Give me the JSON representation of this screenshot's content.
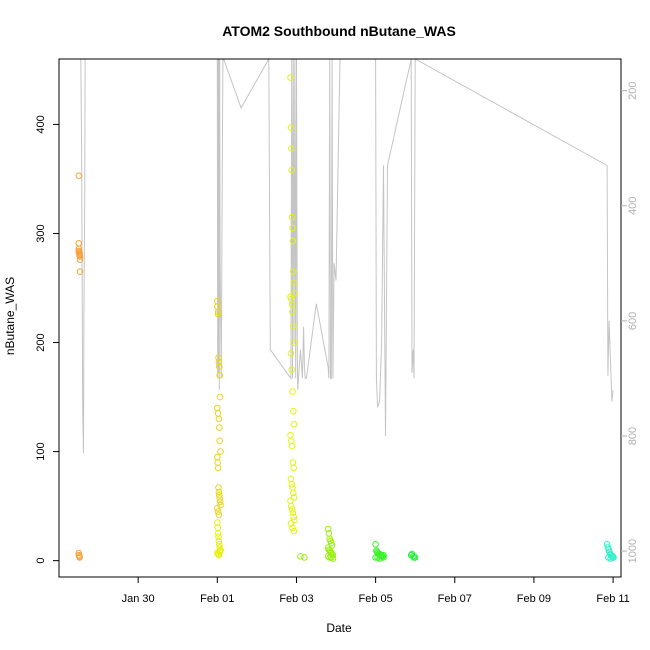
{
  "chart_data": {
    "type": "scatter",
    "title": "ATOM2 Southbound nButane_WAS",
    "xlabel": "Date",
    "ylabel": "nButane_WAS",
    "x_ticks": [
      "Jan 30",
      "Feb 01",
      "Feb 03",
      "Feb 05",
      "Feb 07",
      "Feb 09",
      "Feb 11"
    ],
    "x_tick_values": [
      30,
      32,
      34,
      36,
      38,
      40,
      42
    ],
    "xlim": [
      28.0,
      42.2
    ],
    "ylim": [
      -15,
      460
    ],
    "y_ticks": [
      0,
      100,
      200,
      300,
      400
    ],
    "y2_ticks": [
      200,
      400,
      600,
      800,
      1000
    ],
    "y2lim": [
      1045,
      145
    ],
    "colors": {
      "orange": "#f7a13b",
      "yellow_orange": "#e8d422",
      "yellow": "#e4f20f",
      "lime": "#9af016",
      "green": "#3cf22a",
      "green2": "#24f03f",
      "cyan": "#2ff2c9",
      "gray_line": "#c4c4c4"
    },
    "series": [
      {
        "color": "orange",
        "x": [
          28.5,
          28.5,
          28.5,
          28.5,
          28.5,
          28.52,
          28.52,
          28.52,
          28.53,
          28.53,
          28.53,
          28.5,
          28.5,
          28.52,
          28.52
        ],
        "values": [
          353,
          291,
          286,
          284,
          283,
          282,
          281,
          280,
          279,
          276,
          265,
          7,
          5,
          4,
          3
        ]
      },
      {
        "color": "yellow_orange",
        "x": [
          32.0,
          32.0,
          32.02,
          32.02,
          32.03,
          32.04,
          32.05,
          32.06,
          32.07,
          32.0,
          32.02,
          32.04,
          32.05,
          32.06,
          32.08,
          32.0,
          32.01,
          32.02,
          32.03,
          32.04,
          32.05,
          32.06,
          32.07,
          32.08,
          32.0,
          32.02,
          32.04
        ],
        "values": [
          238,
          233,
          228,
          226,
          186,
          182,
          178,
          170,
          150,
          140,
          135,
          130,
          122,
          110,
          100,
          95,
          90,
          85,
          67,
          63,
          60,
          57,
          54,
          51,
          48,
          45,
          42
        ]
      },
      {
        "color": "yellow",
        "x": [
          32.0,
          32.01,
          32.02,
          32.03,
          32.04,
          32.05,
          32.06,
          32.07,
          32.0,
          32.02,
          32.04,
          32.06,
          32.08,
          33.85,
          33.86,
          33.87,
          33.88,
          33.89,
          33.9,
          33.91,
          33.92,
          33.93,
          33.94,
          33.85,
          33.87,
          33.89,
          33.9,
          33.92,
          33.94,
          33.86,
          33.88,
          33.9,
          33.92,
          33.94,
          33.85,
          33.87,
          33.89,
          33.91,
          33.93,
          33.86,
          33.88,
          33.9,
          33.92,
          33.94,
          33.85,
          33.87,
          33.89,
          33.91,
          33.93,
          33.95,
          33.86,
          33.9,
          33.94
        ],
        "values": [
          35,
          30,
          25,
          22,
          18,
          15,
          12,
          9,
          7,
          6,
          5,
          8,
          10,
          443,
          397,
          378,
          358,
          315,
          305,
          293,
          265,
          255,
          245,
          242,
          240,
          235,
          228,
          215,
          200,
          190,
          175,
          155,
          137,
          125,
          115,
          110,
          105,
          90,
          85,
          75,
          70,
          67,
          62,
          58,
          55,
          50,
          47,
          44,
          40,
          37,
          34,
          30,
          27
        ]
      },
      {
        "color": "lime",
        "x": [
          34.1,
          34.2,
          34.8,
          34.82,
          34.84,
          34.86,
          34.88,
          34.9,
          34.8,
          34.82,
          34.84,
          34.86,
          34.88,
          34.9,
          34.92,
          34.8,
          34.84,
          34.88,
          34.92
        ],
        "values": [
          4,
          3,
          29,
          25,
          20,
          18,
          16,
          14,
          12,
          10,
          9,
          8,
          7,
          6,
          5,
          4,
          3,
          3,
          2
        ]
      },
      {
        "color": "green",
        "x": [
          36.0,
          36.02,
          36.04,
          36.06,
          36.08,
          36.1,
          36.12,
          36.14,
          36.16,
          36.18,
          36.2,
          36.0,
          36.05,
          36.1,
          36.15,
          36.2
        ],
        "values": [
          15,
          9,
          8,
          7,
          6,
          6,
          5,
          5,
          4,
          4,
          3,
          3,
          3,
          2,
          4,
          5
        ]
      },
      {
        "color": "green2",
        "x": [
          36.9,
          36.95,
          37.0,
          36.92,
          36.97
        ],
        "values": [
          5,
          4,
          3,
          6,
          3
        ]
      },
      {
        "color": "cyan",
        "x": [
          41.85,
          41.87,
          41.89,
          41.91,
          41.93,
          41.95,
          41.97,
          41.99,
          42.01,
          41.88,
          41.94,
          42.0
        ],
        "values": [
          15,
          12,
          10,
          8,
          6,
          5,
          4,
          4,
          3,
          3,
          2,
          3
        ]
      }
    ],
    "secondary_line": {
      "color": "gray_line",
      "x": [
        28.55,
        28.57,
        28.6,
        28.62,
        28.63,
        28.65,
        28.66,
        30.5,
        31.5,
        32.0,
        32.01,
        32.02,
        32.03,
        32.04,
        32.05,
        32.06,
        32.07,
        32.1,
        32.12,
        32.14,
        32.16,
        32.6,
        33.3,
        33.34,
        33.86,
        33.88,
        33.9,
        33.92,
        33.94,
        33.96,
        33.98,
        34.0,
        34.02,
        34.03,
        34.1,
        34.15,
        34.18,
        34.2,
        34.22,
        34.25,
        34.5,
        34.8,
        34.82,
        34.84,
        34.86,
        34.88,
        34.9,
        34.92,
        34.95,
        35.0,
        35.1,
        35.8,
        35.85,
        35.9,
        36.0,
        36.02,
        36.05,
        36.1,
        36.12,
        36.15,
        36.2,
        36.25,
        36.3,
        36.9,
        36.92,
        36.95,
        36.97,
        37.0,
        41.85,
        41.87,
        41.9,
        41.95,
        41.97,
        42.0
      ],
      "values": [
        145,
        300,
        750,
        830,
        600,
        400,
        145,
        145,
        145,
        145,
        700,
        145,
        690,
        145,
        720,
        145,
        500,
        700,
        400,
        145,
        145,
        230,
        145,
        650,
        700,
        145,
        700,
        145,
        640,
        145,
        700,
        145,
        650,
        720,
        650,
        700,
        610,
        680,
        700,
        700,
        570,
        680,
        700,
        145,
        700,
        700,
        145,
        700,
        500,
        530,
        145,
        145,
        145,
        145,
        145,
        700,
        750,
        740,
        700,
        640,
        330,
        800,
        330,
        145,
        690,
        650,
        700,
        145,
        330,
        695,
        600,
        700,
        740,
        720
      ]
    }
  }
}
